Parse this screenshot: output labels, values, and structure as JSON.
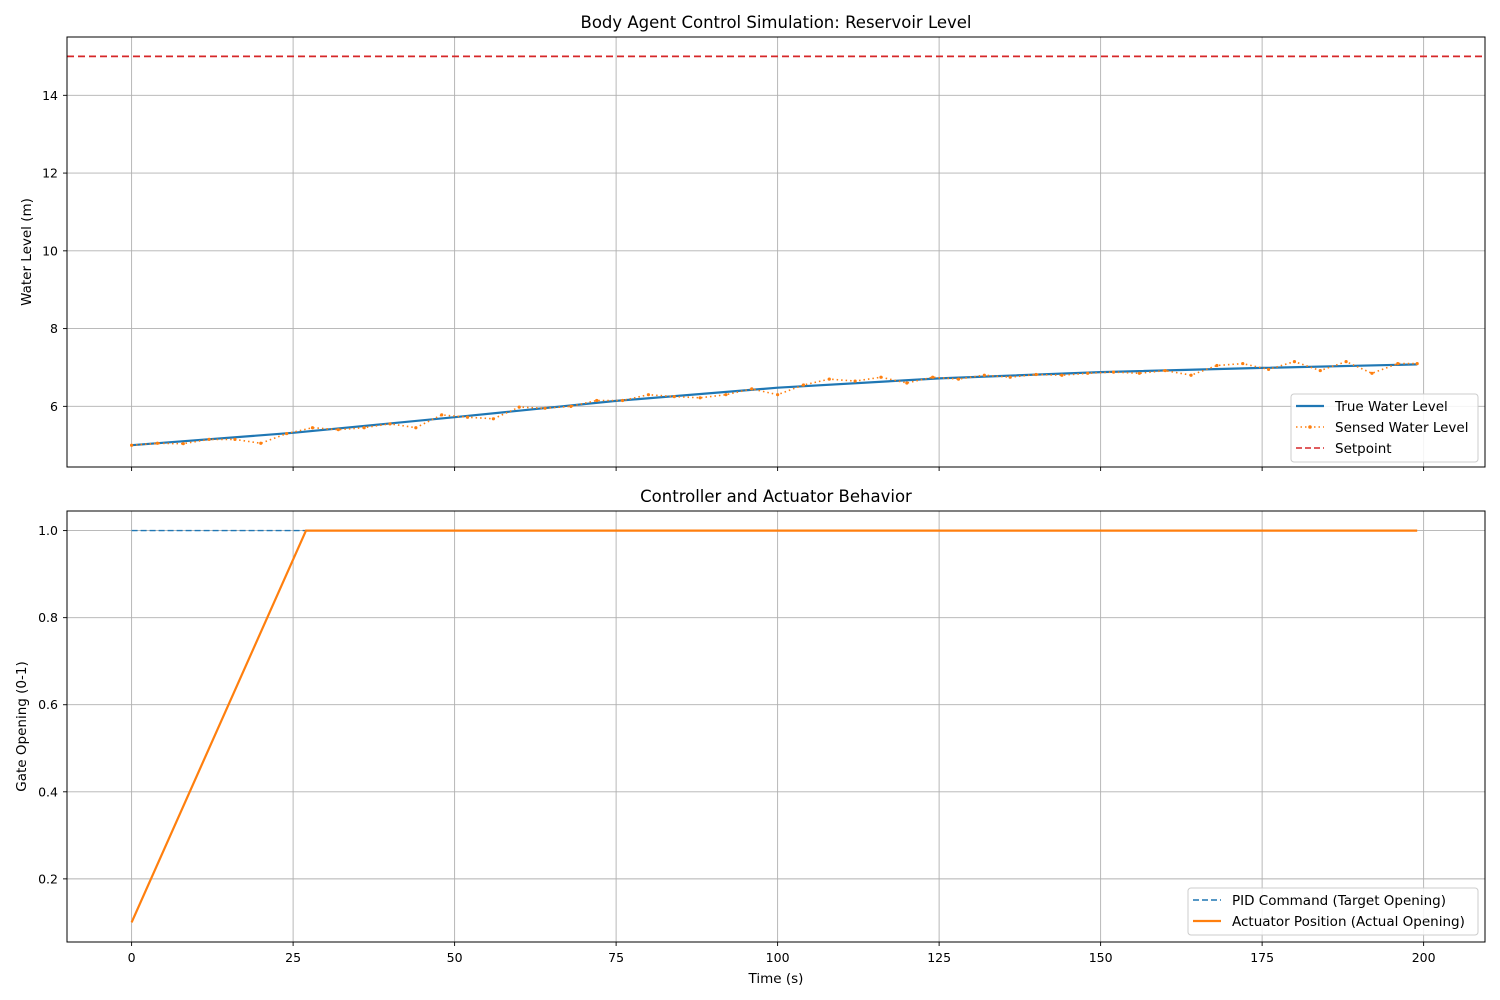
{
  "chart_data": [
    {
      "type": "line",
      "title": "Body Agent Control Simulation: Reservoir Level",
      "xlabel": "",
      "ylabel": "Water Level (m)",
      "xlim": [
        -10,
        209.5
      ],
      "ylim": [
        4.44,
        15.5
      ],
      "xticks": [
        0,
        25,
        50,
        75,
        100,
        125,
        150,
        175,
        200
      ],
      "yticks": [
        6,
        8,
        10,
        12,
        14
      ],
      "show_xtick_labels": false,
      "grid": true,
      "legend_position": "lower-right",
      "colors": {
        "true_level": "#1f77b4",
        "sensed_level": "#ff7f0e",
        "setpoint": "#d62728",
        "grid": "#b0b0b0"
      },
      "series": [
        {
          "name": "True Water Level",
          "style": "solid",
          "x": [
            0,
            25,
            50,
            75,
            100,
            125,
            150,
            175,
            199
          ],
          "y": [
            5.0,
            5.32,
            5.72,
            6.14,
            6.48,
            6.72,
            6.88,
            6.99,
            7.08
          ]
        },
        {
          "name": "Sensed Water Level",
          "style": "dotted-markers",
          "x": [
            0,
            4,
            8,
            12,
            16,
            20,
            24,
            28,
            32,
            36,
            40,
            44,
            48,
            52,
            56,
            60,
            64,
            68,
            72,
            76,
            80,
            84,
            88,
            92,
            96,
            100,
            104,
            108,
            112,
            116,
            120,
            124,
            128,
            132,
            136,
            140,
            144,
            148,
            152,
            156,
            160,
            164,
            168,
            172,
            176,
            180,
            184,
            188,
            192,
            196,
            199
          ],
          "y": [
            5.0,
            5.05,
            5.04,
            5.15,
            5.15,
            5.05,
            5.3,
            5.45,
            5.4,
            5.45,
            5.55,
            5.45,
            5.78,
            5.72,
            5.68,
            5.98,
            5.95,
            6.0,
            6.15,
            6.15,
            6.3,
            6.25,
            6.22,
            6.3,
            6.45,
            6.3,
            6.55,
            6.7,
            6.65,
            6.75,
            6.6,
            6.75,
            6.7,
            6.8,
            6.75,
            6.82,
            6.8,
            6.85,
            6.88,
            6.85,
            6.92,
            6.8,
            7.05,
            7.1,
            6.95,
            7.15,
            6.92,
            7.15,
            6.85,
            7.1,
            7.1
          ]
        },
        {
          "name": "Setpoint",
          "style": "dashed",
          "x": [
            -10,
            209.5
          ],
          "y": [
            15.0,
            15.0
          ]
        }
      ]
    },
    {
      "type": "line",
      "title": "Controller and Actuator Behavior",
      "xlabel": "Time (s)",
      "ylabel": "Gate Opening (0-1)",
      "xlim": [
        -10,
        209.5
      ],
      "ylim": [
        0.055,
        1.045
      ],
      "xticks": [
        0,
        25,
        50,
        75,
        100,
        125,
        150,
        175,
        200
      ],
      "yticks": [
        0.2,
        0.4,
        0.6,
        0.8,
        1.0
      ],
      "show_xtick_labels": true,
      "grid": true,
      "legend_position": "lower-right",
      "colors": {
        "pid_command": "#1f77b4",
        "actuator_position": "#ff7f0e",
        "grid": "#b0b0b0"
      },
      "series": [
        {
          "name": "PID Command (Target Opening)",
          "style": "dashed",
          "x": [
            0,
            199
          ],
          "y": [
            1.0,
            1.0
          ]
        },
        {
          "name": "Actuator Position (Actual Opening)",
          "style": "solid",
          "x": [
            0,
            27,
            199
          ],
          "y": [
            0.1,
            1.0,
            1.0
          ]
        }
      ]
    }
  ]
}
